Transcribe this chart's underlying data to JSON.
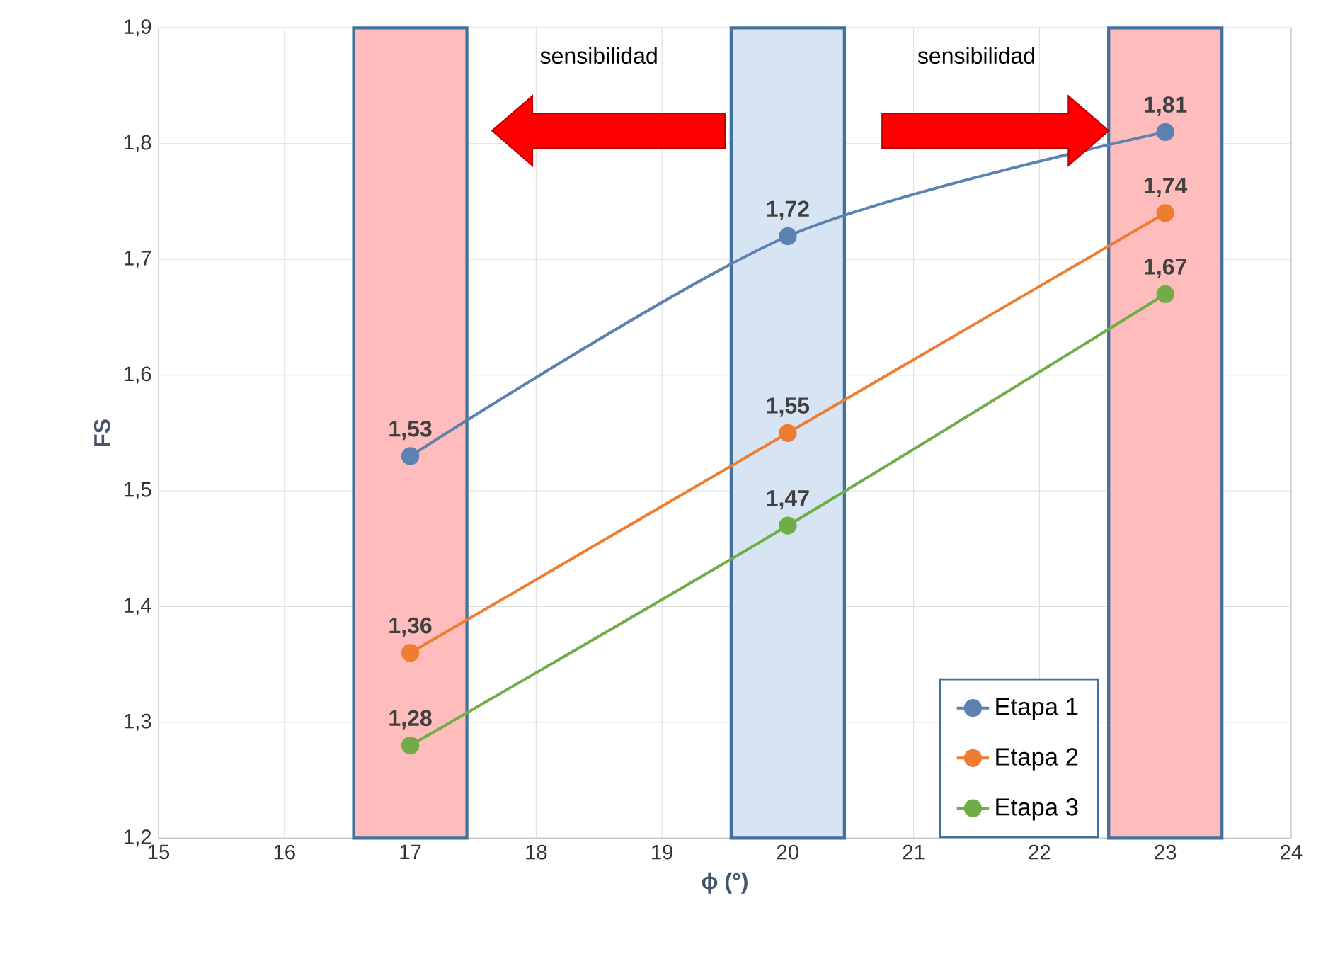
{
  "chart_data": {
    "type": "line",
    "xlabel": "ϕ (°)",
    "ylabel": "FS",
    "xlim": [
      15,
      24
    ],
    "xticks": [
      15,
      16,
      17,
      18,
      19,
      20,
      21,
      22,
      23,
      24
    ],
    "ylim": [
      1.2,
      1.9
    ],
    "yticks": [
      {
        "value": 1.2,
        "label": "1,2"
      },
      {
        "value": 1.3,
        "label": "1,3"
      },
      {
        "value": 1.4,
        "label": "1,4"
      },
      {
        "value": 1.5,
        "label": "1,5"
      },
      {
        "value": 1.6,
        "label": "1,6"
      },
      {
        "value": 1.7,
        "label": "1,7"
      },
      {
        "value": 1.8,
        "label": "1,8"
      },
      {
        "value": 1.9,
        "label": "1,9"
      }
    ],
    "x": [
      17,
      20,
      23
    ],
    "series": [
      {
        "name": "Etapa 1",
        "color": "#5b82b0",
        "values": [
          1.53,
          1.72,
          1.81
        ],
        "value_labels": [
          "1,53",
          "1,72",
          "1,81"
        ]
      },
      {
        "name": "Etapa 2",
        "color": "#ed7d31",
        "values": [
          1.36,
          1.55,
          1.74
        ],
        "value_labels": [
          "1,36",
          "1,55",
          "1,74"
        ]
      },
      {
        "name": "Etapa 3",
        "color": "#70ad47",
        "values": [
          1.28,
          1.47,
          1.67
        ],
        "value_labels": [
          "1,28",
          "1,47",
          "1,67"
        ]
      }
    ],
    "bands": [
      {
        "axis": "x",
        "from": 16.55,
        "to": 17.45,
        "color": "#ffbcbc"
      },
      {
        "axis": "x",
        "from": 19.55,
        "to": 20.45,
        "color": "#d6e4f4"
      },
      {
        "axis": "x",
        "from": 22.55,
        "to": 23.45,
        "color": "#ffbcbc"
      }
    ],
    "annotations": [
      "sensibilidad",
      "sensibilidad"
    ],
    "grid": true,
    "legend": "bottom right",
    "marker": "circle",
    "line_style": "solid"
  }
}
